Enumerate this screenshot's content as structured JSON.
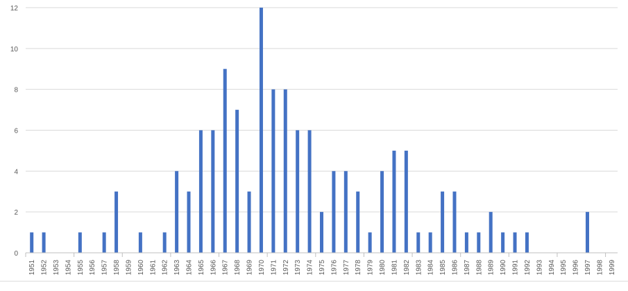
{
  "chart_data": {
    "type": "bar",
    "title": "",
    "xlabel": "",
    "ylabel": "",
    "ylim": [
      0,
      12
    ],
    "yticks": [
      0,
      2,
      4,
      6,
      8,
      10,
      12
    ],
    "grid": true,
    "legend": "none",
    "bar_color": "#4472C4",
    "grid_color": "#d9d9d9",
    "categories": [
      "1951",
      "1952",
      "1953",
      "1954",
      "1955",
      "1956",
      "1957",
      "1958",
      "1959",
      "1960",
      "1961",
      "1962",
      "1963",
      "1964",
      "1965",
      "1966",
      "1967",
      "1968",
      "1969",
      "1970",
      "1971",
      "1972",
      "1973",
      "1974",
      "1975",
      "1976",
      "1977",
      "1978",
      "1979",
      "1980",
      "1981",
      "1982",
      "1983",
      "1984",
      "1985",
      "1986",
      "1987",
      "1988",
      "1989",
      "1990",
      "1991",
      "1992",
      "1993",
      "1994",
      "1995",
      "1996",
      "1997",
      "1998",
      "1999"
    ],
    "values": [
      1,
      1,
      0,
      0,
      1,
      0,
      1,
      3,
      0,
      1,
      0,
      1,
      4,
      3,
      6,
      6,
      9,
      7,
      3,
      12,
      8,
      8,
      6,
      6,
      2,
      4,
      4,
      3,
      1,
      4,
      5,
      5,
      1,
      1,
      3,
      3,
      1,
      1,
      2,
      1,
      1,
      1,
      0,
      0,
      0,
      0,
      2,
      0,
      0
    ]
  }
}
